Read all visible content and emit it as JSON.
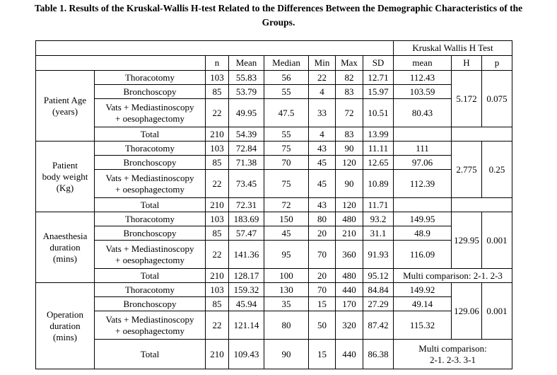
{
  "caption": {
    "line1": "Table 1. Results of the Kruskal-Wallis H-test Related to the Differences Between the Demographic Characteristics of the",
    "line2": "Groups."
  },
  "header": {
    "kw": "Kruskal Wallis H Test",
    "cols": [
      "n",
      "Mean",
      "Median",
      "Min",
      "Max",
      "SD",
      "mean",
      "H",
      "p"
    ]
  },
  "sections": [
    {
      "label": [
        "Patient Age",
        "(years)"
      ],
      "rows": [
        {
          "group": [
            "Thoracotomy"
          ],
          "n": "103",
          "mean": "55.83",
          "median": "56",
          "min": "22",
          "max": "82",
          "sd": "12.71",
          "kw_mean": "112.43"
        },
        {
          "group": [
            "Bronchoscopy"
          ],
          "n": "85",
          "mean": "53.79",
          "median": "55",
          "min": "4",
          "max": "83",
          "sd": "15.97",
          "kw_mean": "103.59"
        },
        {
          "group": [
            "Vats + Mediastinoscopy",
            "+ oesophagectomy"
          ],
          "n": "22",
          "mean": "49.95",
          "median": "47.5",
          "min": "33",
          "max": "72",
          "sd": "10.51",
          "kw_mean": "80.43"
        }
      ],
      "total": {
        "group": "Total",
        "n": "210",
        "mean": "54.39",
        "median": "55",
        "min": "4",
        "max": "83",
        "sd": "13.99",
        "kw_mean": ""
      },
      "H": "5.172",
      "p": "0.075",
      "multi": []
    },
    {
      "label": [
        "Patient",
        "body weight",
        "(Kg)"
      ],
      "rows": [
        {
          "group": [
            "Thoracotomy"
          ],
          "n": "103",
          "mean": "72.84",
          "median": "75",
          "min": "43",
          "max": "90",
          "sd": "11.11",
          "kw_mean": "111"
        },
        {
          "group": [
            "Bronchoscopy"
          ],
          "n": "85",
          "mean": "71.38",
          "median": "70",
          "min": "45",
          "max": "120",
          "sd": "12.65",
          "kw_mean": "97.06"
        },
        {
          "group": [
            "Vats + Mediastinoscopy",
            "+ oesophagectomy"
          ],
          "n": "22",
          "mean": "73.45",
          "median": "75",
          "min": "45",
          "max": "90",
          "sd": "10.89",
          "kw_mean": "112.39"
        }
      ],
      "total": {
        "group": "Total",
        "n": "210",
        "mean": "72.31",
        "median": "72",
        "min": "43",
        "max": "120",
        "sd": "11.71",
        "kw_mean": ""
      },
      "H": "2.775",
      "p": "0.25",
      "multi": []
    },
    {
      "label": [
        "Anaesthesia",
        "duration",
        "(mins)"
      ],
      "rows": [
        {
          "group": [
            "Thoracotomy"
          ],
          "n": "103",
          "mean": "183.69",
          "median": "150",
          "min": "80",
          "max": "480",
          "sd": "93.2",
          "kw_mean": "149.95"
        },
        {
          "group": [
            "Bronchoscopy"
          ],
          "n": "85",
          "mean": "57.47",
          "median": "45",
          "min": "20",
          "max": "210",
          "sd": "31.1",
          "kw_mean": "48.9"
        },
        {
          "group": [
            "Vats + Mediastinoscopy",
            "+ oesophagectomy"
          ],
          "n": "22",
          "mean": "141.36",
          "median": "95",
          "min": "70",
          "max": "360",
          "sd": "91.93",
          "kw_mean": "116.09"
        }
      ],
      "total": {
        "group": "Total",
        "n": "210",
        "mean": "128.17",
        "median": "100",
        "min": "20",
        "max": "480",
        "sd": "95.12",
        "kw_mean": ""
      },
      "H": "129.95",
      "p": "0.001",
      "multi": [
        "Multi comparison: 2-1. 2-3"
      ]
    },
    {
      "label": [
        "Operation",
        "duration",
        "(mins)"
      ],
      "rows": [
        {
          "group": [
            "Thoracotomy"
          ],
          "n": "103",
          "mean": "159.32",
          "median": "130",
          "min": "70",
          "max": "440",
          "sd": "84.84",
          "kw_mean": "149.92"
        },
        {
          "group": [
            "Bronchoscopy"
          ],
          "n": "85",
          "mean": "45.94",
          "median": "35",
          "min": "15",
          "max": "170",
          "sd": "27.29",
          "kw_mean": "49.14"
        },
        {
          "group": [
            "Vats + Mediastinoscopy",
            "+ oesophagectomy"
          ],
          "n": "22",
          "mean": "121.14",
          "median": "80",
          "min": "50",
          "max": "320",
          "sd": "87.42",
          "kw_mean": "115.32"
        }
      ],
      "total": {
        "group": "Total",
        "n": "210",
        "mean": "109.43",
        "median": "90",
        "min": "15",
        "max": "440",
        "sd": "86.38",
        "kw_mean": ""
      },
      "H": "129.06",
      "p": "0.001",
      "multi": [
        "Multi comparison:",
        "2-1. 2-3. 3-1"
      ]
    }
  ]
}
